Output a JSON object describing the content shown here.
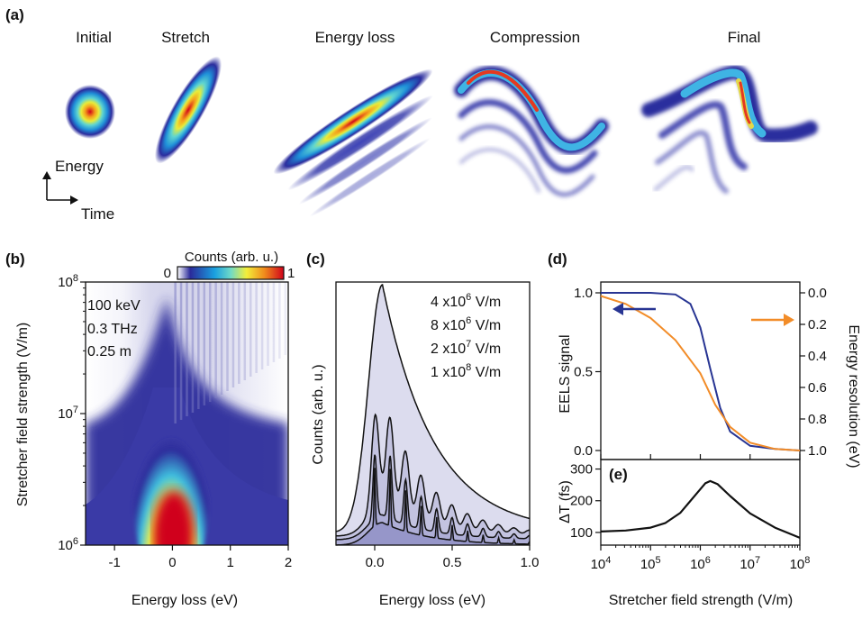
{
  "panels": {
    "a_label": "(a)",
    "b_label": "(b)",
    "c_label": "(c)",
    "d_label": "(d)",
    "e_label": "(e)"
  },
  "panel_a": {
    "stages": [
      "Initial",
      "Stretch",
      "Energy loss",
      "Compression",
      "Final"
    ],
    "axis_energy": "Energy",
    "axis_time": "Time"
  },
  "colors": {
    "d_eels": "#283593",
    "d_resolution": "#f28c28",
    "c_fill": "#b8b8da"
  },
  "chart_data": [
    {
      "type": "heatmap",
      "panel": "b",
      "xlabel": "Energy loss (eV)",
      "ylabel": "Stretcher field strength (V/m)",
      "x_ticks": [
        "-1",
        "0",
        "1",
        "2"
      ],
      "y_ticks": [
        "10^6",
        "10^7",
        "10^8"
      ],
      "xlim": [
        -1.5,
        2
      ],
      "ylim_log10": [
        6,
        8
      ],
      "y_scale": "log",
      "colorbar": {
        "label": "Counts (arb. u.)",
        "min": "0",
        "max": "1",
        "colormap": "jet"
      },
      "annotations": [
        "100 keV",
        "0.3 THz",
        "0.25 m"
      ]
    },
    {
      "type": "line",
      "panel": "c",
      "xlabel": "Energy loss (eV)",
      "ylabel": "Counts (arb. u.)",
      "x_ticks": [
        "0.0",
        "0.5",
        "1.0"
      ],
      "xlim": [
        -0.25,
        1.0
      ],
      "spectra_labels": [
        {
          "base": "4 x10",
          "exp": "6",
          "unit": " V/m"
        },
        {
          "base": "8 x10",
          "exp": "6",
          "unit": " V/m"
        },
        {
          "base": "2 x10",
          "exp": "7",
          "unit": " V/m"
        },
        {
          "base": "1 x10",
          "exp": "8",
          "unit": " V/m"
        }
      ],
      "peak_spacing_eV": 0.1
    },
    {
      "type": "line",
      "panel": "d",
      "xlabel": "",
      "ylabel": "EELS signal",
      "ylabel_right": "Energy resolution (eV)",
      "x_scale": "log",
      "xlim_log10": [
        4,
        8
      ],
      "ylim": [
        0,
        1
      ],
      "yticks_left": [
        "0.0",
        "0.5",
        "1.0"
      ],
      "yticks_right": [
        "0.0",
        "0.2",
        "0.4",
        "0.6",
        "0.8",
        "1.0"
      ],
      "series": [
        {
          "axis": "left",
          "x_log10": [
            4,
            5,
            5.5,
            5.8,
            6.0,
            6.2,
            6.4,
            6.6,
            7,
            7.5,
            8
          ],
          "values": [
            1.0,
            1.0,
            0.99,
            0.93,
            0.78,
            0.52,
            0.27,
            0.12,
            0.03,
            0.01,
            0.0
          ]
        },
        {
          "axis": "right",
          "x_log10": [
            4,
            4.5,
            5,
            5.5,
            6.0,
            6.3,
            6.6,
            7,
            7.5,
            8
          ],
          "values": [
            0.98,
            0.93,
            0.84,
            0.7,
            0.49,
            0.29,
            0.15,
            0.05,
            0.01,
            0.0
          ]
        }
      ]
    },
    {
      "type": "line",
      "panel": "e",
      "xlabel": "Stretcher field strength (V/m)",
      "ylabel": "ΔT (fs)",
      "x_scale": "log",
      "xlim_log10": [
        4,
        8
      ],
      "ylim": [
        60,
        330
      ],
      "yticks": [
        "100",
        "200",
        "300"
      ],
      "x_ticks": [
        "10^4",
        "10^5",
        "10^6",
        "10^7",
        "10^8"
      ],
      "series": [
        {
          "x_log10": [
            4,
            4.5,
            5,
            5.3,
            5.6,
            5.9,
            6.1,
            6.2,
            6.35,
            6.6,
            7,
            7.5,
            8
          ],
          "values": [
            103,
            106,
            115,
            130,
            162,
            218,
            255,
            262,
            252,
            215,
            160,
            115,
            83
          ]
        }
      ]
    }
  ]
}
